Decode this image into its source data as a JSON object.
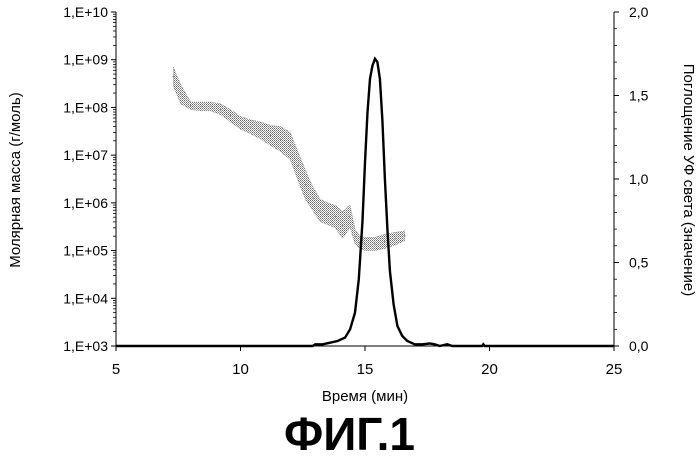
{
  "figure_caption": "ФИГ.1",
  "chart_data": {
    "type": "line",
    "xlabel": "Время (мин)",
    "ylabel_left": "Молярная масса (г/моль)",
    "ylabel_right": "Поглощение УФ света (значение)",
    "xlim": [
      5,
      25
    ],
    "x_ticks": [
      "5",
      "10",
      "15",
      "20",
      "25"
    ],
    "y_left_scale": "log",
    "ylim_left": [
      1000,
      10000000000
    ],
    "y_left_ticks": [
      "1,E+03",
      "1,E+04",
      "1,E+05",
      "1,E+06",
      "1,E+07",
      "1,E+08",
      "1,E+09",
      "1,E+10"
    ],
    "ylim_right": [
      0,
      2
    ],
    "y_right_ticks": [
      "0,0",
      "0,5",
      "1,0",
      "1,5",
      "2,0"
    ],
    "grid": false,
    "legend": "none",
    "colors": {
      "uv_line": "#000000",
      "mass_band": "#8a8a8a",
      "axes": "#000000"
    },
    "series": [
      {
        "axis": "right",
        "style": "line",
        "x": [
          5.0,
          12.9,
          13.0,
          13.3,
          13.6,
          13.9,
          14.2,
          14.4,
          14.6,
          14.75,
          14.9,
          15.0,
          15.1,
          15.2,
          15.3,
          15.4,
          15.5,
          15.6,
          15.7,
          15.8,
          15.9,
          16.0,
          16.15,
          16.3,
          16.5,
          16.7,
          17.0,
          17.3,
          17.6,
          17.8,
          18.0,
          18.3,
          18.5,
          19.7,
          19.75,
          19.8,
          25.0
        ],
        "y": [
          0.0,
          0.0,
          0.01,
          0.01,
          0.02,
          0.03,
          0.05,
          0.1,
          0.2,
          0.4,
          0.75,
          1.1,
          1.4,
          1.6,
          1.68,
          1.72,
          1.7,
          1.6,
          1.35,
          1.0,
          0.7,
          0.45,
          0.25,
          0.12,
          0.06,
          0.03,
          0.01,
          0.01,
          0.015,
          0.01,
          0.0,
          0.01,
          0.0,
          0.0,
          0.01,
          0.0,
          0.0
        ]
      },
      {
        "axis": "left",
        "style": "dotted-band",
        "x": [
          7.3,
          7.6,
          8.0,
          8.4,
          8.8,
          9.2,
          9.6,
          10.0,
          10.4,
          10.8,
          11.2,
          11.6,
          12.0,
          12.3,
          12.6,
          12.9,
          13.2,
          13.5,
          13.8,
          14.1,
          14.4,
          14.6,
          14.8,
          15.0,
          15.4,
          15.8,
          16.2,
          16.6
        ],
        "y_low": [
          280000000,
          120000000,
          90000000,
          85000000,
          85000000,
          70000000,
          50000000,
          35000000,
          28000000,
          22000000,
          16000000,
          12000000,
          8000000,
          3000000,
          1200000,
          700000,
          400000,
          350000,
          300000,
          180000,
          300000,
          140000,
          110000,
          100000,
          100000,
          110000,
          130000,
          160000
        ],
        "y_high": [
          700000000,
          300000000,
          130000000,
          130000000,
          130000000,
          120000000,
          90000000,
          65000000,
          55000000,
          50000000,
          42000000,
          40000000,
          30000000,
          12000000,
          5000000,
          2200000,
          1200000,
          1000000,
          900000,
          650000,
          900000,
          280000,
          200000,
          190000,
          190000,
          220000,
          240000,
          260000
        ]
      }
    ]
  }
}
